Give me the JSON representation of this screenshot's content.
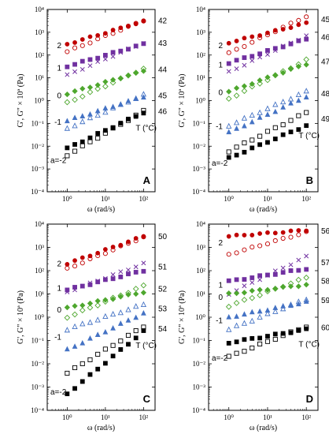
{
  "chart_data": [
    {
      "type": "scatter",
      "panel_label": "A",
      "xlabel": "ω (rad/s)",
      "ylabel": "G', G\" × 10ª (Pa)",
      "x_scale": "log",
      "y_scale": "log",
      "xlim": [
        0.3,
        200
      ],
      "ylim": [
        0.0001,
        10000
      ],
      "x_ticks": [
        "10⁰",
        "10¹",
        "10²"
      ],
      "y_ticks": [
        "10⁻⁴",
        "10⁻³",
        "10⁻²",
        "10⁻¹",
        "10⁰",
        "10¹",
        "10²",
        "10³",
        "10⁴"
      ],
      "temperature_label": "T (°C)",
      "series": [
        {
          "temperature": "42",
          "shift_label": "2",
          "color": "#c00000",
          "gp_marker": "filled-circle",
          "gpp_marker": "open-circle",
          "gp": [
            300,
            3000
          ],
          "gpp": [
            140,
            3300
          ]
        },
        {
          "temperature": "43",
          "shift_label": "1",
          "color": "#7030a0",
          "gp_marker": "filled-square",
          "gpp_marker": "cross",
          "gp": [
            32,
            300
          ],
          "gpp": [
            13,
            340
          ]
        },
        {
          "temperature": "44",
          "shift_label": "0",
          "color": "#4ea72e",
          "gp_marker": "filled-diamond",
          "gpp_marker": "open-diamond",
          "gp": [
            2,
            20
          ],
          "gpp": [
            0.8,
            25
          ]
        },
        {
          "temperature": "45",
          "shift_label": "-1",
          "color": "#4472c4",
          "gp_marker": "filled-triangle",
          "gpp_marker": "open-triangle",
          "gp": [
            0.13,
            1.5
          ],
          "gpp": [
            0.06,
            1.8
          ]
        },
        {
          "temperature": "46",
          "shift_label": "a=-2",
          "color": "#000000",
          "gp_marker": "filled-square",
          "gpp_marker": "open-square",
          "gp": [
            0.008,
            0.3
          ],
          "gpp": [
            0.004,
            0.35
          ]
        }
      ]
    },
    {
      "type": "scatter",
      "panel_label": "B",
      "xlabel": "ω (rad/s)",
      "ylabel": "G', G\" × 10ª (Pa)",
      "x_scale": "log",
      "y_scale": "log",
      "xlim": [
        0.3,
        200
      ],
      "ylim": [
        0.0001,
        10000
      ],
      "x_ticks": [
        "10⁰",
        "10¹",
        "10²"
      ],
      "y_ticks": [
        "10⁻⁴",
        "10⁻³",
        "10⁻²",
        "10⁻¹",
        "10⁰",
        "10¹",
        "10²",
        "10³",
        "10⁴"
      ],
      "temperature_label": "T (°C)",
      "series": [
        {
          "temperature": "45",
          "shift_label": "2",
          "color": "#c00000",
          "gp_marker": "filled-circle",
          "gpp_marker": "open-circle",
          "gp": [
            350,
            2500
          ],
          "gpp": [
            120,
            5000
          ]
        },
        {
          "temperature": "46",
          "shift_label": "1",
          "color": "#7030a0",
          "gp_marker": "filled-square",
          "gpp_marker": "cross",
          "gp": [
            45,
            500
          ],
          "gpp": [
            18,
            700
          ]
        },
        {
          "temperature": "47",
          "shift_label": "0",
          "color": "#4ea72e",
          "gp_marker": "filled-diamond",
          "gpp_marker": "open-diamond",
          "gp": [
            2.5,
            40
          ],
          "gpp": [
            1.2,
            60
          ]
        },
        {
          "temperature": "48",
          "shift_label": "-1",
          "color": "#4472c4",
          "gp_marker": "filled-triangle",
          "gpp_marker": "open-triangle",
          "gp": [
            0.04,
            1.5
          ],
          "gpp": [
            0.08,
            2.5
          ]
        },
        {
          "temperature": "49",
          "shift_label": "a=-2",
          "color": "#000000",
          "gp_marker": "filled-square",
          "gpp_marker": "open-square",
          "gp": [
            0.003,
            0.08
          ],
          "gpp": [
            0.006,
            0.3
          ]
        }
      ]
    },
    {
      "type": "scatter",
      "panel_label": "C",
      "xlabel": "ω (rad/s)",
      "ylabel": "G', G\" × 10ª (Pa)",
      "x_scale": "log",
      "y_scale": "log",
      "xlim": [
        0.3,
        200
      ],
      "ylim": [
        0.0001,
        10000
      ],
      "x_ticks": [
        "10⁰",
        "10¹",
        "10²"
      ],
      "y_ticks": [
        "10⁻⁴",
        "10⁻³",
        "10⁻²",
        "10⁻¹",
        "10⁰",
        "10¹",
        "10²",
        "10³",
        "10⁴"
      ],
      "temperature_label": "T (°C)",
      "series": [
        {
          "temperature": "50",
          "shift_label": "2",
          "color": "#c00000",
          "gp_marker": "filled-circle",
          "gpp_marker": "open-circle",
          "gp": [
            200,
            3000
          ],
          "gpp": [
            120,
            2800
          ]
        },
        {
          "temperature": "51",
          "shift_label": "1",
          "color": "#7030a0",
          "gp_marker": "filled-square",
          "gpp_marker": "cross",
          "gp": [
            15,
            100
          ],
          "gpp": [
            12,
            200
          ]
        },
        {
          "temperature": "52",
          "shift_label": "0",
          "color": "#4ea72e",
          "gp_marker": "filled-diamond",
          "gpp_marker": "open-diamond",
          "gp": [
            2.5,
            12
          ],
          "gpp": [
            1.0,
            22
          ]
        },
        {
          "temperature": "53",
          "shift_label": "-1",
          "color": "#4472c4",
          "gp_marker": "filled-triangle",
          "gpp_marker": "open-triangle",
          "gp": [
            0.04,
            1.5
          ],
          "gpp": [
            0.3,
            3.5
          ]
        },
        {
          "temperature": "54",
          "shift_label": "a=-2",
          "color": "#000000",
          "gp_marker": "filled-square",
          "gpp_marker": "open-square",
          "gp": [
            0.0005,
            0.25
          ],
          "gpp": [
            0.004,
            0.4
          ]
        }
      ]
    },
    {
      "type": "scatter",
      "panel_label": "D",
      "xlabel": "ω (rad/s)",
      "ylabel": "G', G\" × 10ª (Pa)",
      "x_scale": "log",
      "y_scale": "log",
      "xlim": [
        0.3,
        200
      ],
      "ylim": [
        0.0001,
        10000
      ],
      "x_ticks": [
        "10⁰",
        "10¹",
        "10²"
      ],
      "y_ticks": [
        "10⁻⁴",
        "10⁻³",
        "10⁻²",
        "10⁻¹",
        "10⁰",
        "10¹",
        "10²",
        "10³",
        "10⁴"
      ],
      "temperature_label": "T (°C)",
      "series": [
        {
          "temperature": "56",
          "shift_label": "2",
          "color": "#c00000",
          "gp_marker": "filled-circle",
          "gpp_marker": "open-circle",
          "gp": [
            3000,
            5500
          ],
          "gpp": [
            500,
            4500
          ]
        },
        {
          "temperature": "57",
          "shift_label": "1",
          "color": "#7030a0",
          "gp_marker": "filled-square",
          "gpp_marker": "cross",
          "gp": [
            35,
            120
          ],
          "gpp": [
            10,
            400
          ]
        },
        {
          "temperature": "58",
          "shift_label": "0",
          "color": "#4ea72e",
          "gp_marker": "filled-diamond",
          "gpp_marker": "open-diamond",
          "gp": [
            10,
            25
          ],
          "gpp": [
            3,
            50
          ]
        },
        {
          "temperature": "59",
          "shift_label": "-1",
          "color": "#4472c4",
          "gp_marker": "filled-triangle",
          "gpp_marker": "open-triangle",
          "gp": [
            1.0,
            4.5
          ],
          "gpp": [
            0.3,
            6
          ]
        },
        {
          "temperature": "60",
          "shift_label": "a=-2",
          "color": "#000000",
          "gp_marker": "filled-square",
          "gpp_marker": "open-square",
          "gp": [
            0.08,
            0.3
          ],
          "gpp": [
            0.02,
            0.4
          ]
        }
      ]
    }
  ]
}
